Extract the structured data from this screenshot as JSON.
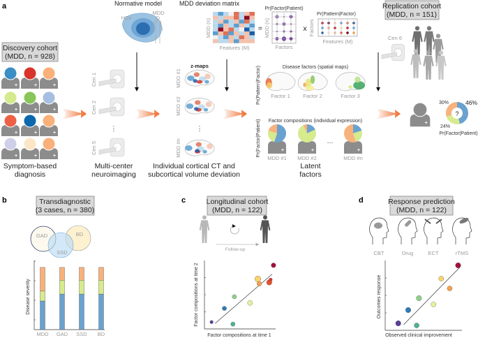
{
  "panels": {
    "a": "a",
    "b": "b",
    "c": "c",
    "d": "d"
  },
  "discovery": {
    "title_line1": "Discovery cohort",
    "title_line2": "(MDD, n = 928)",
    "person_colors": [
      "#3a8fc4",
      "#d8342a",
      "#f9b07a",
      "#d4ea8c",
      "#88c65a",
      "#a6bfe0",
      "#ee6046",
      "#0b68ae",
      "#f9b07a",
      "#cfd0e8",
      "#fde6c8",
      "#f9b07a"
    ],
    "caption_line1": "Symptom-based",
    "caption_line2": "diagnosis"
  },
  "neuroimaging": {
    "centers": [
      "Cen 1",
      "Cen 2",
      "Cen 5"
    ],
    "ellipsis": "⋮",
    "caption_line1": "Multi-center",
    "caption_line2": "neuroimaging"
  },
  "normative": {
    "title": "Normative model",
    "hcs": "HCs",
    "mdd": "MDD"
  },
  "deviation": {
    "title": "MDD deviation matrix",
    "ylabel": "MDD (n)",
    "xlabel": "Features (M)",
    "values": [
      [
        -1,
        -2,
        -1,
        0,
        2,
        -1,
        1,
        2
      ],
      [
        1,
        -1,
        1,
        1,
        2,
        -1,
        3,
        1
      ],
      [
        -1,
        1,
        -2,
        -1,
        1,
        -2,
        2,
        -1
      ],
      [
        -1,
        -2,
        1,
        -1,
        -2,
        1,
        -1,
        -2
      ],
      [
        -1,
        3,
        1,
        2,
        -1,
        0,
        -3,
        -1
      ],
      [
        -2,
        1,
        2,
        -2,
        1,
        -1,
        1,
        -3
      ],
      [
        0,
        -1,
        -2,
        1,
        -1,
        2,
        1,
        -1
      ],
      [
        1,
        -1,
        -1,
        1,
        -2,
        1,
        1,
        1
      ]
    ],
    "zmaps_label": "z-maps",
    "subjects": [
      "MDD #1",
      "MDD #2",
      "MDD #n"
    ],
    "ellipsis": "⋮",
    "caption_line1": "Individual cortical CT and",
    "caption_line2": "subcortical volume deviation"
  },
  "decomposition": {
    "equals": "=",
    "times": "x",
    "factor_patient": {
      "title": "Pr(Factor|Patient)",
      "ylabel": "MDD (n)",
      "xlabel": "Factors",
      "sizes": [
        [
          3,
          1.5,
          3
        ],
        [
          2,
          3,
          1.5
        ],
        [
          1.5,
          2,
          2
        ],
        [
          3,
          4,
          3
        ]
      ]
    },
    "pattern_factor": {
      "title": "Pr(Pattern|Factor)",
      "ylabel": "Factors",
      "xlabel": "Features (M)",
      "colors": [
        [
          "#a3142c",
          "#6a0a20",
          "#f2c8b0",
          "#5a9bd0",
          "#d86a50",
          "#0b3d7a"
        ],
        [
          "#5a9bd0",
          "#e9a07a",
          "#b8122a",
          "#f3e3a0",
          "#b8122a",
          "#5a9bd0"
        ],
        [
          "#2a62a8",
          "#f5d8c8",
          "#e9b59a",
          "#d86a50",
          "#6a0a20",
          "#f0a050"
        ]
      ]
    }
  },
  "latent": {
    "disease_factors_title": "Disease factors (spatial maps)",
    "pattern_axis": "Pr(Pattern|Factor)",
    "factors": [
      "Factor 1",
      "Factor 2",
      "Factor 3"
    ],
    "compositions_title": "Factor compositions (individual expression)",
    "patient_axis": "Pr(Factor|Patient)",
    "subjects": [
      "MDD #1",
      "MDD #2",
      "MDD #n"
    ],
    "ellipsis": "···",
    "compositions": [
      {
        "blue": 55,
        "green": 25,
        "orange": 20
      },
      {
        "blue": 18,
        "green": 75,
        "orange": 7
      },
      {
        "blue": 20,
        "green": 25,
        "orange": 55
      }
    ],
    "caption_line1": "Latent",
    "caption_line2": "factors"
  },
  "replication": {
    "title_line1": "Replication cohort",
    "title_line2": "(MDD, n = 151)",
    "center": "Cen 6",
    "unknown": "?",
    "composition": {
      "blue": 46,
      "green": 24,
      "orange": 30
    },
    "labels": {
      "blue": "46%",
      "green": "24%",
      "orange": "30%"
    },
    "axis": "Pr(Factor|Patient)"
  },
  "colors": {
    "blue": "#6aa2cf",
    "green": "#d6ea8e",
    "orange": "#f8b27c",
    "arrow": "#ee6a2a",
    "box": "#d9d9d9",
    "person": "#8c8c8c"
  },
  "transdiagnostic": {
    "title_line1": "Transdiagnostic",
    "title_line2": "(3 cases, n = 380)",
    "venn": [
      "GAD",
      "SSD",
      "BD"
    ],
    "chart_data": {
      "type": "bar",
      "stacked": true,
      "ylabel": "Disease severity",
      "categories": [
        "MDD",
        "GAD",
        "SSD",
        "BD"
      ],
      "series": [
        {
          "color": "#6aa2cf",
          "values": [
            1.45,
            1.8,
            1.8,
            1.8
          ]
        },
        {
          "color": "#d6ea8e",
          "values": [
            0.5,
            0.7,
            0.7,
            0.7
          ]
        },
        {
          "color": "#f8b27c",
          "values": [
            1.2,
            0.65,
            0.65,
            0.65
          ]
        }
      ],
      "ylim": [
        0,
        3.5
      ]
    }
  },
  "longitudinal": {
    "title_line1": "Longitudinal cohort",
    "title_line2": "(MDD, n = 122)",
    "followup": "Follow-up",
    "chart_data": {
      "type": "scatter",
      "xlabel": "Factor compositions at time 1",
      "ylabel": "Factor compositions at time 2",
      "points": [
        {
          "x": 0.1,
          "y": 0.1,
          "color": "#5a3e9a",
          "size": 1
        },
        {
          "x": 0.28,
          "y": 0.3,
          "color": "#2d7ab8",
          "size": 1.3
        },
        {
          "x": 0.4,
          "y": 0.07,
          "color": "#4db38a",
          "size": 1.3
        },
        {
          "x": 0.42,
          "y": 0.47,
          "color": "#8fd08a",
          "size": 1.3
        },
        {
          "x": 0.64,
          "y": 0.38,
          "color": "#e8f0a0",
          "size": 1.5
        },
        {
          "x": 0.75,
          "y": 0.73,
          "color": "#fad36a",
          "size": 1.8
        },
        {
          "x": 0.77,
          "y": 0.66,
          "color": "#f5a050",
          "size": 1.4
        },
        {
          "x": 0.91,
          "y": 0.68,
          "color": "#e8502a",
          "size": 1.6
        },
        {
          "x": 0.93,
          "y": 0.72,
          "color": "#d8342a",
          "size": 1
        },
        {
          "x": 0.97,
          "y": 0.93,
          "color": "#a3103a",
          "size": 1.4
        }
      ],
      "fit": [
        [
          0.15,
          0.08
        ],
        [
          0.95,
          0.8
        ]
      ]
    }
  },
  "response": {
    "title_line1": "Response prediction",
    "title_line2": "(MDD, n = 122)",
    "treatments": [
      "CBT",
      "Drug",
      "ECT",
      "rTMS"
    ],
    "chart_data": {
      "type": "scatter",
      "xlabel": "Observed clinical improvement",
      "ylabel": "Outcomes response",
      "points": [
        {
          "x": 0.17,
          "y": 0.1,
          "color": "#5a3e9a",
          "size": 1.6
        },
        {
          "x": 0.3,
          "y": 0.29,
          "color": "#2d7ab8",
          "size": 1.6
        },
        {
          "x": 0.41,
          "y": 0.07,
          "color": "#4db38a",
          "size": 1.5
        },
        {
          "x": 0.44,
          "y": 0.46,
          "color": "#8fd08a",
          "size": 1.6
        },
        {
          "x": 0.63,
          "y": 0.37,
          "color": "#e8f0a0",
          "size": 1.5
        },
        {
          "x": 0.73,
          "y": 0.74,
          "color": "#fad36a",
          "size": 1.5
        },
        {
          "x": 0.84,
          "y": 0.6,
          "color": "#f5a050",
          "size": 1.5
        },
        {
          "x": 0.95,
          "y": 0.93,
          "color": "#a3103a",
          "size": 1.6
        }
      ],
      "fit": [
        [
          0.24,
          0.08
        ],
        [
          0.97,
          0.9
        ]
      ]
    }
  }
}
